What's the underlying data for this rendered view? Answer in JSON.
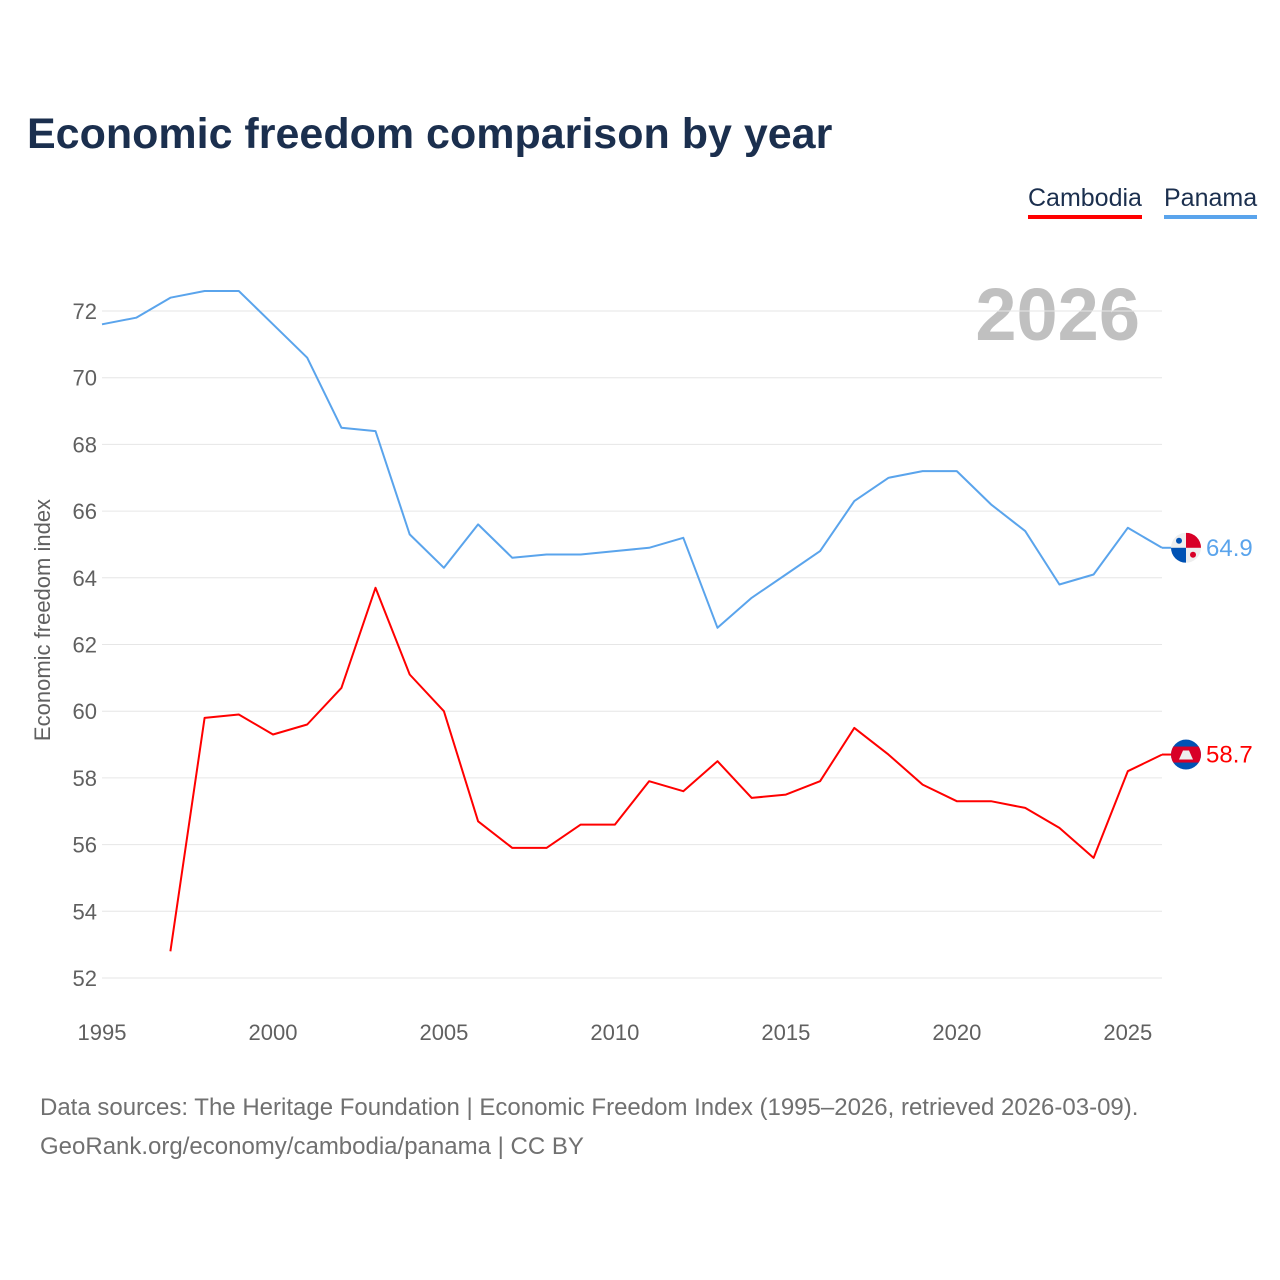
{
  "chart_data": {
    "type": "line",
    "title": "Economic freedom comparison by year",
    "ylabel": "Economic freedom index",
    "xlabel": "",
    "year_label": "2026",
    "ylim": [
      51.5,
      73
    ],
    "xlim": [
      1995,
      2026
    ],
    "yticks": [
      52,
      54,
      56,
      58,
      60,
      62,
      64,
      66,
      68,
      70,
      72
    ],
    "xticks": [
      1995,
      2000,
      2005,
      2010,
      2015,
      2020,
      2025
    ],
    "grid": true,
    "legend_position": "top-right",
    "x": [
      1995,
      1996,
      1997,
      1998,
      1999,
      2000,
      2001,
      2002,
      2003,
      2004,
      2005,
      2006,
      2007,
      2008,
      2009,
      2010,
      2011,
      2012,
      2013,
      2014,
      2015,
      2016,
      2017,
      2018,
      2019,
      2020,
      2021,
      2022,
      2023,
      2024,
      2025,
      2026
    ],
    "series": [
      {
        "name": "Cambodia",
        "color": "#ff0000",
        "end_label": "58.7",
        "flag": "cambodia-flag",
        "values": [
          null,
          null,
          52.8,
          59.8,
          59.9,
          59.3,
          59.6,
          60.7,
          63.7,
          61.1,
          60.0,
          56.7,
          55.9,
          55.9,
          56.6,
          56.6,
          57.9,
          57.6,
          58.5,
          57.4,
          57.5,
          57.9,
          59.5,
          58.7,
          57.8,
          57.3,
          57.3,
          57.1,
          56.5,
          55.6,
          58.2,
          58.7
        ]
      },
      {
        "name": "Panama",
        "color": "#5aa4ec",
        "end_label": "64.9",
        "flag": "panama-flag",
        "values": [
          71.6,
          71.8,
          72.4,
          72.6,
          72.6,
          71.6,
          70.6,
          68.5,
          68.4,
          65.3,
          64.3,
          65.6,
          64.6,
          64.7,
          64.7,
          64.8,
          64.9,
          65.2,
          62.5,
          63.4,
          64.1,
          64.8,
          66.3,
          67.0,
          67.2,
          67.2,
          66.2,
          65.4,
          63.8,
          64.1,
          65.5,
          64.9
        ]
      }
    ]
  },
  "footer": {
    "line1": "Data sources: The Heritage Foundation | Economic Freedom Index (1995–2026, retrieved 2026-03-09).",
    "line2": "GeoRank.org/economy/cambodia/panama | CC BY"
  }
}
